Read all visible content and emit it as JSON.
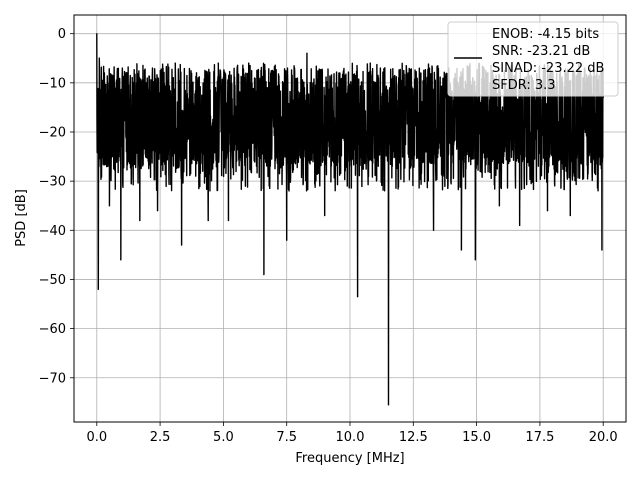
{
  "chart_data": {
    "type": "line",
    "xlabel": "Frequency [MHz]",
    "ylabel": "PSD [dB]",
    "xlim": [
      -0.9,
      20.9
    ],
    "ylim": [
      -79,
      3.8
    ],
    "x_ticks": [
      0.0,
      2.5,
      5.0,
      7.5,
      10.0,
      12.5,
      15.0,
      17.5,
      20.0
    ],
    "x_tick_labels": [
      "0.0",
      "2.5",
      "5.0",
      "7.5",
      "10.0",
      "12.5",
      "15.0",
      "17.5",
      "20.0"
    ],
    "y_ticks": [
      0,
      -10,
      -20,
      -30,
      -40,
      -50,
      -60,
      -70
    ],
    "y_tick_labels": [
      "0",
      "−10",
      "−20",
      "−30",
      "−40",
      "−50",
      "−60",
      "−70"
    ],
    "grid": true,
    "legend_position": "top-right",
    "legend": [
      "ENOB: -4.15 bits",
      "SNR: -23.21 dB",
      "SINAD: -23.22 dB",
      "SFDR: 3.3"
    ],
    "series": [
      {
        "color": "#000000",
        "points": [
          [
            0.0,
            0.0
          ],
          [
            0.03,
            -18
          ],
          [
            0.06,
            -52
          ],
          [
            0.1,
            -5
          ],
          [
            0.15,
            -12
          ],
          [
            0.3,
            -8
          ],
          [
            0.5,
            -35
          ],
          [
            0.7,
            -10
          ],
          [
            0.95,
            -46
          ],
          [
            1.2,
            -8
          ],
          [
            1.7,
            -38
          ],
          [
            2.2,
            -7
          ],
          [
            2.4,
            -36
          ],
          [
            3.1,
            -6
          ],
          [
            3.35,
            -43
          ],
          [
            4.0,
            -9
          ],
          [
            4.4,
            -38
          ],
          [
            4.8,
            -6
          ],
          [
            5.2,
            -38
          ],
          [
            6.0,
            -6
          ],
          [
            6.6,
            -49
          ],
          [
            7.0,
            -8
          ],
          [
            7.5,
            -42
          ],
          [
            8.3,
            -4
          ],
          [
            9.0,
            -37
          ],
          [
            9.6,
            -8
          ],
          [
            10.3,
            -53.5
          ],
          [
            10.8,
            -6
          ],
          [
            11.2,
            -7
          ],
          [
            11.52,
            -75.5
          ],
          [
            11.8,
            -12
          ],
          [
            12.8,
            -8
          ],
          [
            13.3,
            -40
          ],
          [
            13.9,
            -7
          ],
          [
            14.4,
            -44
          ],
          [
            14.7,
            -10
          ],
          [
            14.95,
            -46
          ],
          [
            15.4,
            -10
          ],
          [
            15.9,
            -35
          ],
          [
            16.35,
            -8
          ],
          [
            16.7,
            -39
          ],
          [
            17.2,
            -9
          ],
          [
            17.8,
            -36
          ],
          [
            18.3,
            -8
          ],
          [
            18.7,
            -37
          ],
          [
            19.2,
            -9
          ],
          [
            19.95,
            -44
          ],
          [
            20.0,
            -13
          ]
        ]
      }
    ]
  }
}
